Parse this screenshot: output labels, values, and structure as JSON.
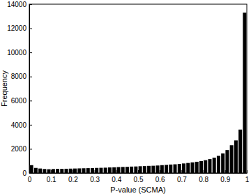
{
  "chart_data": {
    "type": "histogram",
    "x_label": "P-value (SCMA)",
    "y_label": "Frequency",
    "bins": [
      0,
      0.02,
      0.04,
      0.06,
      0.08,
      0.1,
      0.12,
      0.14,
      0.16,
      0.18,
      0.2,
      0.22,
      0.24,
      0.26,
      0.28,
      0.3,
      0.32,
      0.34,
      0.36,
      0.38,
      0.4,
      0.42,
      0.44,
      0.46,
      0.48,
      0.5,
      0.52,
      0.54,
      0.56,
      0.58,
      0.6,
      0.62,
      0.64,
      0.66,
      0.68,
      0.7,
      0.72,
      0.74,
      0.76,
      0.78,
      0.8,
      0.82,
      0.84,
      0.86,
      0.88,
      0.9,
      0.92,
      0.94,
      0.96,
      0.98,
      1
    ],
    "values": [
      650,
      420,
      370,
      330,
      310,
      330,
      340,
      340,
      350,
      360,
      370,
      380,
      390,
      400,
      410,
      420,
      430,
      440,
      460,
      470,
      490,
      500,
      510,
      530,
      540,
      560,
      570,
      590,
      600,
      620,
      650,
      670,
      700,
      720,
      750,
      790,
      830,
      880,
      930,
      990,
      1060,
      1150,
      1270,
      1420,
      1620,
      1900,
      2300,
      2700,
      3600,
      13300
    ],
    "color": "#000000",
    "xlim": [
      0,
      1
    ],
    "ylim": [
      0,
      14000
    ],
    "xticks": [
      0,
      0.1,
      0.2,
      0.3,
      0.4,
      0.5,
      0.6,
      0.7,
      0.8,
      0.9,
      1
    ],
    "yticks": [
      0,
      2000,
      4000,
      6000,
      8000,
      10000,
      12000,
      14000
    ]
  }
}
